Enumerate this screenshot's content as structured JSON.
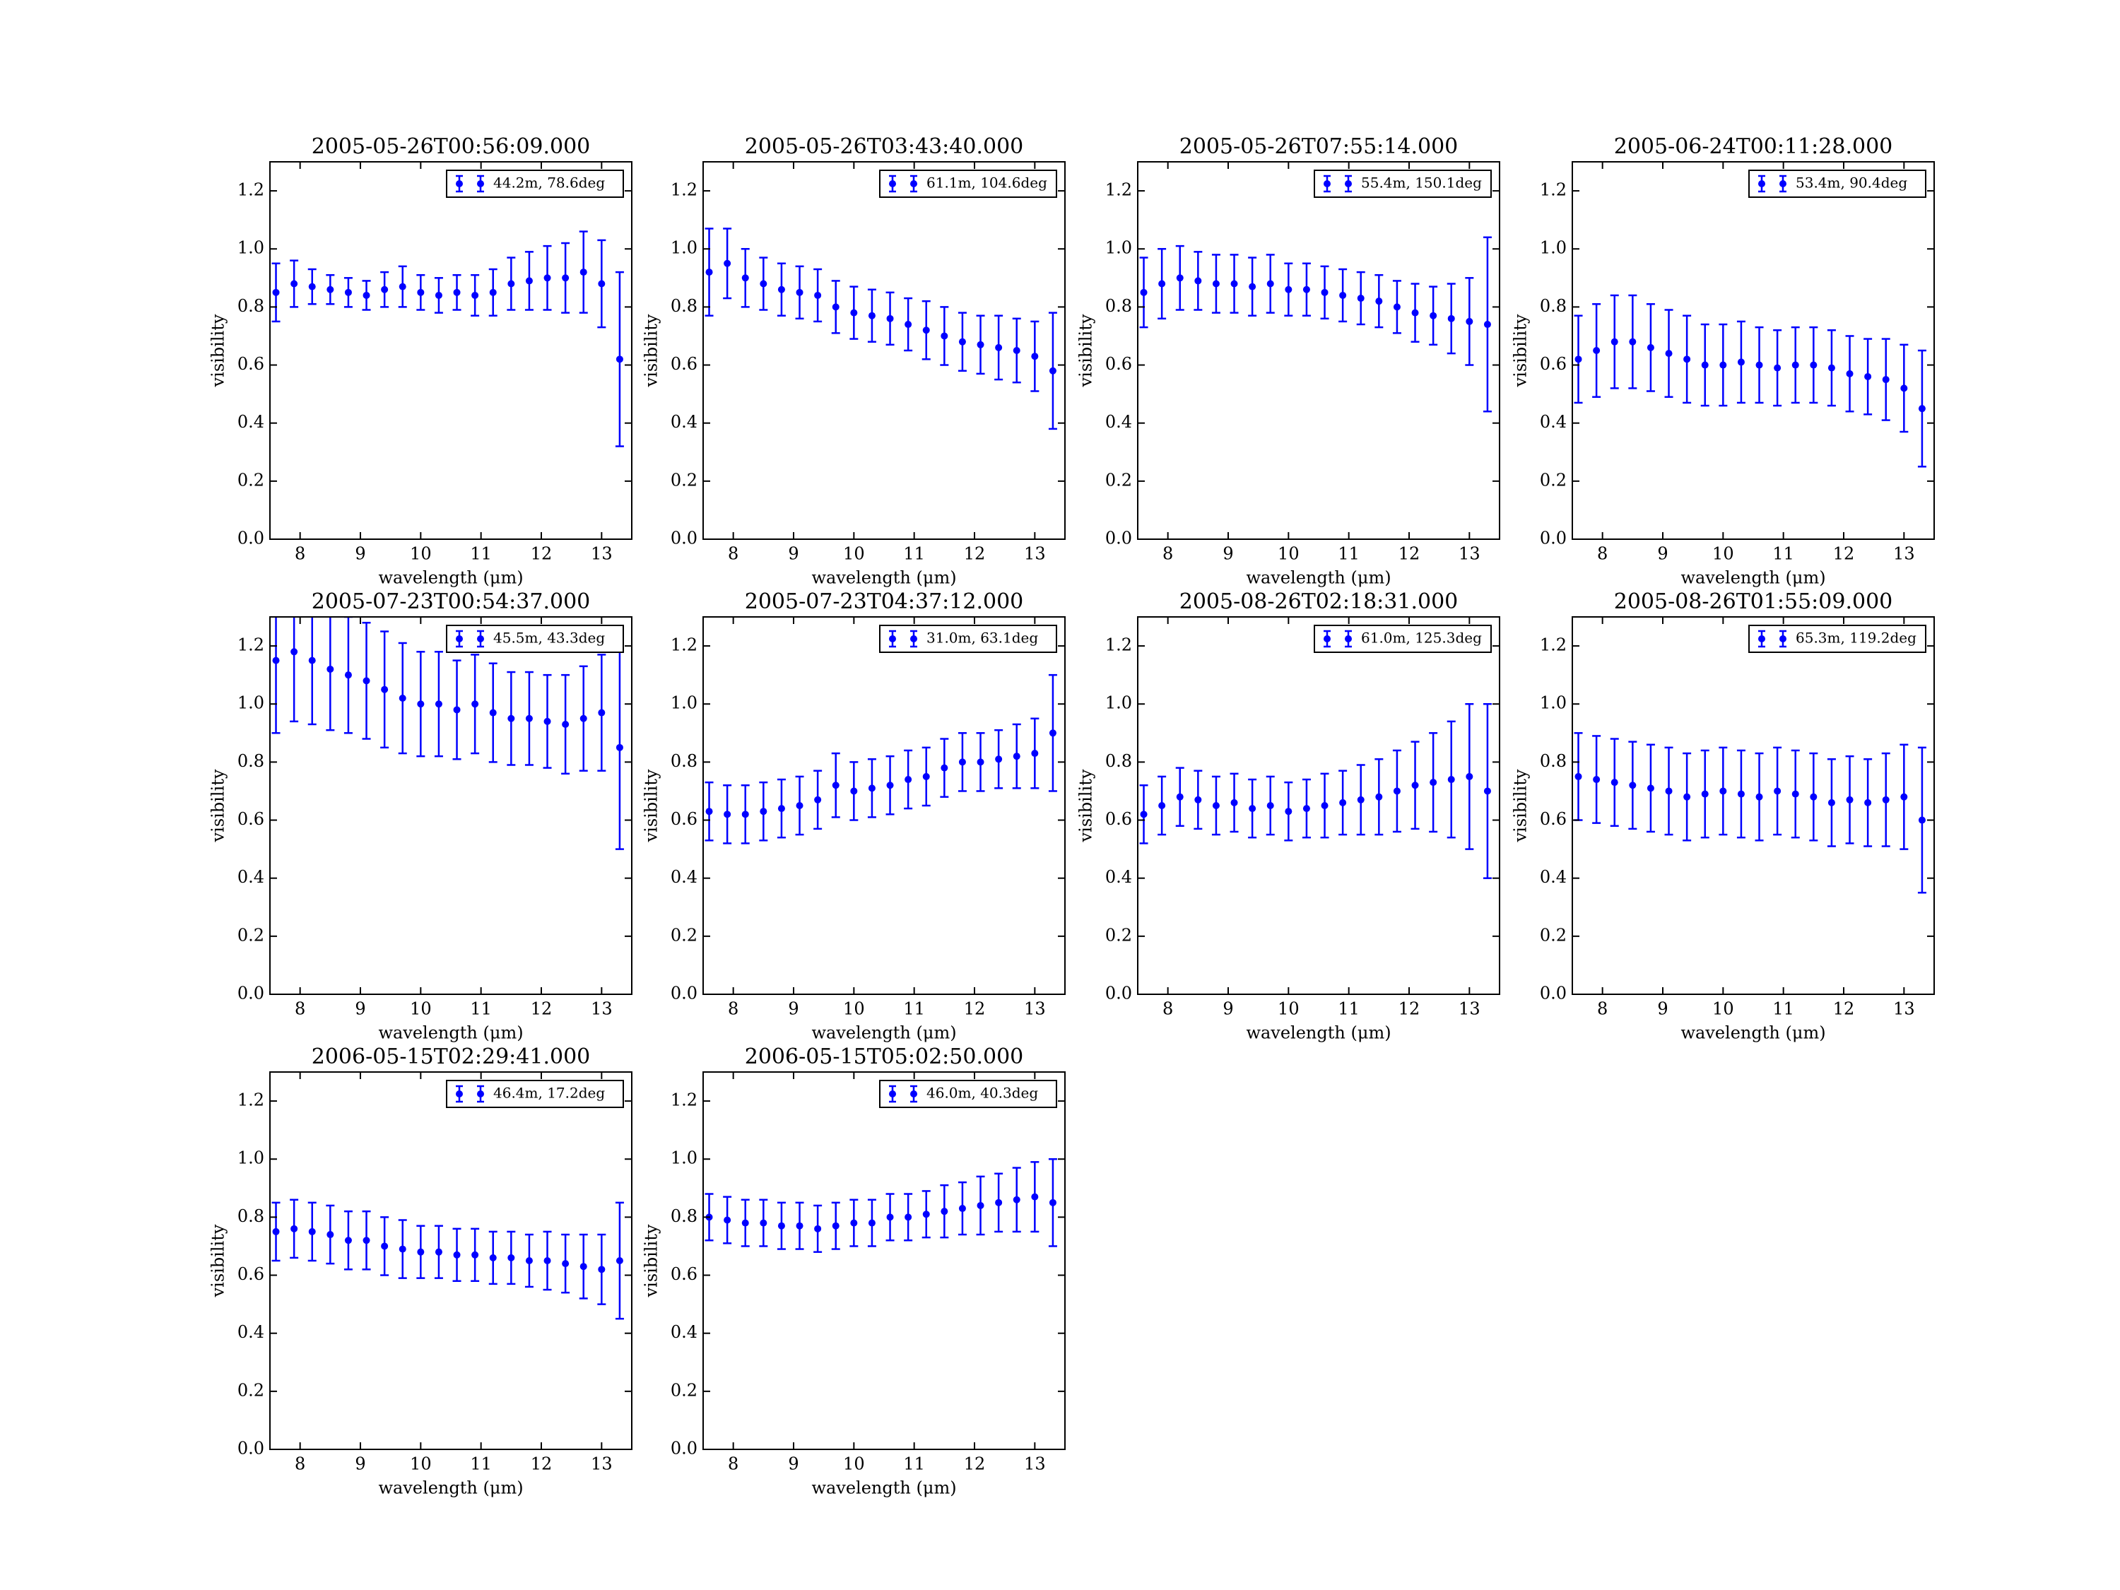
{
  "chart_data": [
    {
      "type": "errorbar",
      "title": "2005-05-26T00:56:09.000",
      "xlabel": "wavelength (μm)",
      "ylabel": "visibility",
      "xlim": [
        7.5,
        13.5
      ],
      "ylim": [
        0,
        1.3
      ],
      "xticks": [
        8,
        9,
        10,
        11,
        12,
        13
      ],
      "yticks": [
        {
          "value": 0,
          "label": "0.0"
        },
        0.2,
        0.4,
        0.6,
        0.8,
        {
          "value": 1,
          "label": "1.0"
        },
        1.2
      ],
      "legend": "upper right",
      "x": [
        7.6,
        7.9,
        8.2,
        8.5,
        8.8,
        9.1,
        9.4,
        9.7,
        10.0,
        10.3,
        10.6,
        10.9,
        11.2,
        11.5,
        11.8,
        12.1,
        12.4,
        12.7,
        13.0,
        13.3
      ],
      "series": [
        {
          "name": "44.2m, 78.6deg",
          "color": "#0000ff",
          "values": [
            0.85,
            0.88,
            0.87,
            0.86,
            0.85,
            0.84,
            0.86,
            0.87,
            0.85,
            0.84,
            0.85,
            0.84,
            0.85,
            0.88,
            0.89,
            0.9,
            0.9,
            0.92,
            0.88,
            0.62
          ],
          "errors": [
            0.1,
            0.08,
            0.06,
            0.05,
            0.05,
            0.05,
            0.06,
            0.07,
            0.06,
            0.06,
            0.06,
            0.07,
            0.08,
            0.09,
            0.1,
            0.11,
            0.12,
            0.14,
            0.15,
            0.3
          ]
        }
      ]
    },
    {
      "type": "errorbar",
      "title": "2005-05-26T03:43:40.000",
      "xlabel": "wavelength (μm)",
      "ylabel": "visibility",
      "xlim": [
        7.5,
        13.5
      ],
      "ylim": [
        0,
        1.3
      ],
      "xticks": [
        8,
        9,
        10,
        11,
        12,
        13
      ],
      "yticks": [
        {
          "value": 0,
          "label": "0.0"
        },
        0.2,
        0.4,
        0.6,
        0.8,
        {
          "value": 1,
          "label": "1.0"
        },
        1.2
      ],
      "legend": "upper right",
      "x": [
        7.6,
        7.9,
        8.2,
        8.5,
        8.8,
        9.1,
        9.4,
        9.7,
        10.0,
        10.3,
        10.6,
        10.9,
        11.2,
        11.5,
        11.8,
        12.1,
        12.4,
        12.7,
        13.0,
        13.3
      ],
      "series": [
        {
          "name": "61.1m, 104.6deg",
          "color": "#0000ff",
          "values": [
            0.92,
            0.95,
            0.9,
            0.88,
            0.86,
            0.85,
            0.84,
            0.8,
            0.78,
            0.77,
            0.76,
            0.74,
            0.72,
            0.7,
            0.68,
            0.67,
            0.66,
            0.65,
            0.63,
            0.58
          ],
          "errors": [
            0.15,
            0.12,
            0.1,
            0.09,
            0.09,
            0.09,
            0.09,
            0.09,
            0.09,
            0.09,
            0.09,
            0.09,
            0.1,
            0.1,
            0.1,
            0.1,
            0.11,
            0.11,
            0.12,
            0.2
          ]
        }
      ]
    },
    {
      "type": "errorbar",
      "title": "2005-05-26T07:55:14.000",
      "xlabel": "wavelength (μm)",
      "ylabel": "visibility",
      "xlim": [
        7.5,
        13.5
      ],
      "ylim": [
        0,
        1.3
      ],
      "xticks": [
        8,
        9,
        10,
        11,
        12,
        13
      ],
      "yticks": [
        {
          "value": 0,
          "label": "0.0"
        },
        0.2,
        0.4,
        0.6,
        0.8,
        {
          "value": 1,
          "label": "1.0"
        },
        1.2
      ],
      "legend": "upper right",
      "x": [
        7.6,
        7.9,
        8.2,
        8.5,
        8.8,
        9.1,
        9.4,
        9.7,
        10.0,
        10.3,
        10.6,
        10.9,
        11.2,
        11.5,
        11.8,
        12.1,
        12.4,
        12.7,
        13.0,
        13.3
      ],
      "series": [
        {
          "name": "55.4m, 150.1deg",
          "color": "#0000ff",
          "values": [
            0.85,
            0.88,
            0.9,
            0.89,
            0.88,
            0.88,
            0.87,
            0.88,
            0.86,
            0.86,
            0.85,
            0.84,
            0.83,
            0.82,
            0.8,
            0.78,
            0.77,
            0.76,
            0.75,
            0.74
          ],
          "errors": [
            0.12,
            0.12,
            0.11,
            0.1,
            0.1,
            0.1,
            0.1,
            0.1,
            0.09,
            0.09,
            0.09,
            0.09,
            0.09,
            0.09,
            0.09,
            0.1,
            0.1,
            0.12,
            0.15,
            0.3
          ]
        }
      ]
    },
    {
      "type": "errorbar",
      "title": "2005-06-24T00:11:28.000",
      "xlabel": "wavelength (μm)",
      "ylabel": "visibility",
      "xlim": [
        7.5,
        13.5
      ],
      "ylim": [
        0,
        1.3
      ],
      "xticks": [
        8,
        9,
        10,
        11,
        12,
        13
      ],
      "yticks": [
        {
          "value": 0,
          "label": "0.0"
        },
        0.2,
        0.4,
        0.6,
        0.8,
        {
          "value": 1,
          "label": "1.0"
        },
        1.2
      ],
      "legend": "upper right",
      "x": [
        7.6,
        7.9,
        8.2,
        8.5,
        8.8,
        9.1,
        9.4,
        9.7,
        10.0,
        10.3,
        10.6,
        10.9,
        11.2,
        11.5,
        11.8,
        12.1,
        12.4,
        12.7,
        13.0,
        13.3
      ],
      "series": [
        {
          "name": "53.4m, 90.4deg",
          "color": "#0000ff",
          "values": [
            0.62,
            0.65,
            0.68,
            0.68,
            0.66,
            0.64,
            0.62,
            0.6,
            0.6,
            0.61,
            0.6,
            0.59,
            0.6,
            0.6,
            0.59,
            0.57,
            0.56,
            0.55,
            0.52,
            0.45
          ],
          "errors": [
            0.15,
            0.16,
            0.16,
            0.16,
            0.15,
            0.15,
            0.15,
            0.14,
            0.14,
            0.14,
            0.13,
            0.13,
            0.13,
            0.13,
            0.13,
            0.13,
            0.13,
            0.14,
            0.15,
            0.2
          ]
        }
      ]
    },
    {
      "type": "errorbar",
      "title": "2005-07-23T00:54:37.000",
      "xlabel": "wavelength (μm)",
      "ylabel": "visibility",
      "xlim": [
        7.5,
        13.5
      ],
      "ylim": [
        0,
        1.3
      ],
      "xticks": [
        8,
        9,
        10,
        11,
        12,
        13
      ],
      "yticks": [
        {
          "value": 0,
          "label": "0.0"
        },
        0.2,
        0.4,
        0.6,
        0.8,
        {
          "value": 1,
          "label": "1.0"
        },
        1.2
      ],
      "legend": "upper right",
      "x": [
        7.6,
        7.9,
        8.2,
        8.5,
        8.8,
        9.1,
        9.4,
        9.7,
        10.0,
        10.3,
        10.6,
        10.9,
        11.2,
        11.5,
        11.8,
        12.1,
        12.4,
        12.7,
        13.0,
        13.3
      ],
      "series": [
        {
          "name": "45.5m, 43.3deg",
          "color": "#0000ff",
          "values": [
            1.15,
            1.18,
            1.15,
            1.12,
            1.1,
            1.08,
            1.05,
            1.02,
            1.0,
            1.0,
            0.98,
            1.0,
            0.97,
            0.95,
            0.95,
            0.94,
            0.93,
            0.95,
            0.97,
            0.85
          ],
          "errors": [
            0.25,
            0.24,
            0.22,
            0.21,
            0.2,
            0.2,
            0.2,
            0.19,
            0.18,
            0.18,
            0.17,
            0.17,
            0.17,
            0.16,
            0.16,
            0.16,
            0.17,
            0.18,
            0.2,
            0.35
          ]
        }
      ]
    },
    {
      "type": "errorbar",
      "title": "2005-07-23T04:37:12.000",
      "xlabel": "wavelength (μm)",
      "ylabel": "visibility",
      "xlim": [
        7.5,
        13.5
      ],
      "ylim": [
        0,
        1.3
      ],
      "xticks": [
        8,
        9,
        10,
        11,
        12,
        13
      ],
      "yticks": [
        {
          "value": 0,
          "label": "0.0"
        },
        0.2,
        0.4,
        0.6,
        0.8,
        {
          "value": 1,
          "label": "1.0"
        },
        1.2
      ],
      "legend": "upper right",
      "x": [
        7.6,
        7.9,
        8.2,
        8.5,
        8.8,
        9.1,
        9.4,
        9.7,
        10.0,
        10.3,
        10.6,
        10.9,
        11.2,
        11.5,
        11.8,
        12.1,
        12.4,
        12.7,
        13.0,
        13.3
      ],
      "series": [
        {
          "name": "31.0m, 63.1deg",
          "color": "#0000ff",
          "values": [
            0.63,
            0.62,
            0.62,
            0.63,
            0.64,
            0.65,
            0.67,
            0.72,
            0.7,
            0.71,
            0.72,
            0.74,
            0.75,
            0.78,
            0.8,
            0.8,
            0.81,
            0.82,
            0.83,
            0.9
          ],
          "errors": [
            0.1,
            0.1,
            0.1,
            0.1,
            0.1,
            0.1,
            0.1,
            0.11,
            0.1,
            0.1,
            0.1,
            0.1,
            0.1,
            0.1,
            0.1,
            0.1,
            0.1,
            0.11,
            0.12,
            0.2
          ]
        }
      ]
    },
    {
      "type": "errorbar",
      "title": "2005-08-26T02:18:31.000",
      "xlabel": "wavelength (μm)",
      "ylabel": "visibility",
      "xlim": [
        7.5,
        13.5
      ],
      "ylim": [
        0,
        1.3
      ],
      "xticks": [
        8,
        9,
        10,
        11,
        12,
        13
      ],
      "yticks": [
        {
          "value": 0,
          "label": "0.0"
        },
        0.2,
        0.4,
        0.6,
        0.8,
        {
          "value": 1,
          "label": "1.0"
        },
        1.2
      ],
      "legend": "upper right",
      "x": [
        7.6,
        7.9,
        8.2,
        8.5,
        8.8,
        9.1,
        9.4,
        9.7,
        10.0,
        10.3,
        10.6,
        10.9,
        11.2,
        11.5,
        11.8,
        12.1,
        12.4,
        12.7,
        13.0,
        13.3
      ],
      "series": [
        {
          "name": "61.0m, 125.3deg",
          "color": "#0000ff",
          "values": [
            0.62,
            0.65,
            0.68,
            0.67,
            0.65,
            0.66,
            0.64,
            0.65,
            0.63,
            0.64,
            0.65,
            0.66,
            0.67,
            0.68,
            0.7,
            0.72,
            0.73,
            0.74,
            0.75,
            0.7
          ],
          "errors": [
            0.1,
            0.1,
            0.1,
            0.1,
            0.1,
            0.1,
            0.1,
            0.1,
            0.1,
            0.1,
            0.11,
            0.11,
            0.12,
            0.13,
            0.14,
            0.15,
            0.17,
            0.2,
            0.25,
            0.3
          ]
        }
      ]
    },
    {
      "type": "errorbar",
      "title": "2005-08-26T01:55:09.000",
      "xlabel": "wavelength (μm)",
      "ylabel": "visibility",
      "xlim": [
        7.5,
        13.5
      ],
      "ylim": [
        0,
        1.3
      ],
      "xticks": [
        8,
        9,
        10,
        11,
        12,
        13
      ],
      "yticks": [
        {
          "value": 0,
          "label": "0.0"
        },
        0.2,
        0.4,
        0.6,
        0.8,
        {
          "value": 1,
          "label": "1.0"
        },
        1.2
      ],
      "legend": "upper right",
      "x": [
        7.6,
        7.9,
        8.2,
        8.5,
        8.8,
        9.1,
        9.4,
        9.7,
        10.0,
        10.3,
        10.6,
        10.9,
        11.2,
        11.5,
        11.8,
        12.1,
        12.4,
        12.7,
        13.0,
        13.3
      ],
      "series": [
        {
          "name": "65.3m, 119.2deg",
          "color": "#0000ff",
          "values": [
            0.75,
            0.74,
            0.73,
            0.72,
            0.71,
            0.7,
            0.68,
            0.69,
            0.7,
            0.69,
            0.68,
            0.7,
            0.69,
            0.68,
            0.66,
            0.67,
            0.66,
            0.67,
            0.68,
            0.6
          ],
          "errors": [
            0.15,
            0.15,
            0.15,
            0.15,
            0.15,
            0.15,
            0.15,
            0.15,
            0.15,
            0.15,
            0.15,
            0.15,
            0.15,
            0.15,
            0.15,
            0.15,
            0.15,
            0.16,
            0.18,
            0.25
          ]
        }
      ]
    },
    {
      "type": "errorbar",
      "title": "2006-05-15T02:29:41.000",
      "xlabel": "wavelength (μm)",
      "ylabel": "visibility",
      "xlim": [
        7.5,
        13.5
      ],
      "ylim": [
        0,
        1.3
      ],
      "xticks": [
        8,
        9,
        10,
        11,
        12,
        13
      ],
      "yticks": [
        {
          "value": 0,
          "label": "0.0"
        },
        0.2,
        0.4,
        0.6,
        0.8,
        {
          "value": 1,
          "label": "1.0"
        },
        1.2
      ],
      "legend": "upper right",
      "x": [
        7.6,
        7.9,
        8.2,
        8.5,
        8.8,
        9.1,
        9.4,
        9.7,
        10.0,
        10.3,
        10.6,
        10.9,
        11.2,
        11.5,
        11.8,
        12.1,
        12.4,
        12.7,
        13.0,
        13.3
      ],
      "series": [
        {
          "name": "46.4m, 17.2deg",
          "color": "#0000ff",
          "values": [
            0.75,
            0.76,
            0.75,
            0.74,
            0.72,
            0.72,
            0.7,
            0.69,
            0.68,
            0.68,
            0.67,
            0.67,
            0.66,
            0.66,
            0.65,
            0.65,
            0.64,
            0.63,
            0.62,
            0.65
          ],
          "errors": [
            0.1,
            0.1,
            0.1,
            0.1,
            0.1,
            0.1,
            0.1,
            0.1,
            0.09,
            0.09,
            0.09,
            0.09,
            0.09,
            0.09,
            0.09,
            0.1,
            0.1,
            0.11,
            0.12,
            0.2
          ]
        }
      ]
    },
    {
      "type": "errorbar",
      "title": "2006-05-15T05:02:50.000",
      "xlabel": "wavelength (μm)",
      "ylabel": "visibility",
      "xlim": [
        7.5,
        13.5
      ],
      "ylim": [
        0,
        1.3
      ],
      "xticks": [
        8,
        9,
        10,
        11,
        12,
        13
      ],
      "yticks": [
        {
          "value": 0,
          "label": "0.0"
        },
        0.2,
        0.4,
        0.6,
        0.8,
        {
          "value": 1,
          "label": "1.0"
        },
        1.2
      ],
      "legend": "upper right",
      "x": [
        7.6,
        7.9,
        8.2,
        8.5,
        8.8,
        9.1,
        9.4,
        9.7,
        10.0,
        10.3,
        10.6,
        10.9,
        11.2,
        11.5,
        11.8,
        12.1,
        12.4,
        12.7,
        13.0,
        13.3
      ],
      "series": [
        {
          "name": "46.0m, 40.3deg",
          "color": "#0000ff",
          "values": [
            0.8,
            0.79,
            0.78,
            0.78,
            0.77,
            0.77,
            0.76,
            0.77,
            0.78,
            0.78,
            0.8,
            0.8,
            0.81,
            0.82,
            0.83,
            0.84,
            0.85,
            0.86,
            0.87,
            0.85
          ],
          "errors": [
            0.08,
            0.08,
            0.08,
            0.08,
            0.08,
            0.08,
            0.08,
            0.08,
            0.08,
            0.08,
            0.08,
            0.08,
            0.08,
            0.09,
            0.09,
            0.1,
            0.1,
            0.11,
            0.12,
            0.15
          ]
        }
      ]
    }
  ]
}
